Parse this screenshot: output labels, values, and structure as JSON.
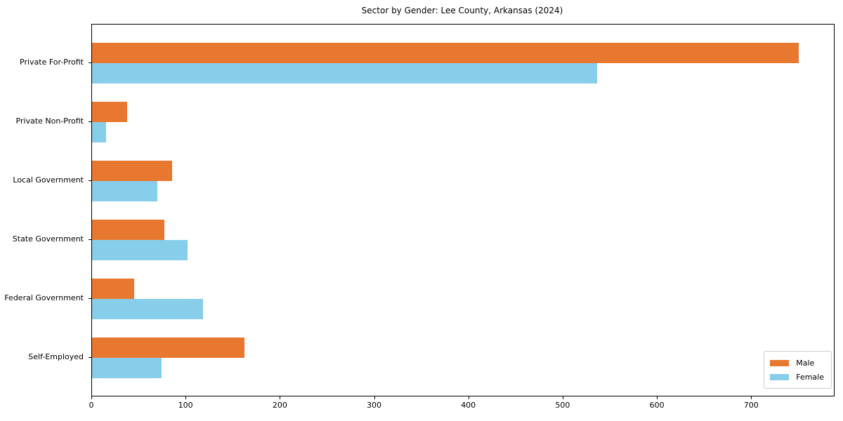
{
  "chart_data": {
    "type": "bar",
    "orientation": "horizontal",
    "title": "Sector by Gender: Lee County, Arkansas (2024)",
    "categories": [
      "Private For-Profit",
      "Private Non-Profit",
      "Local Government",
      "State Government",
      "Federal Government",
      "Self-Employed"
    ],
    "series": [
      {
        "name": "Male",
        "color": "#e8772f",
        "values": [
          750,
          37,
          85,
          77,
          45,
          162
        ]
      },
      {
        "name": "Female",
        "color": "#87ceeb",
        "values": [
          536,
          15,
          69,
          101,
          118,
          74
        ]
      }
    ],
    "xlabel": "",
    "ylabel": "",
    "xlim": [
      0,
      787
    ],
    "x_ticks": [
      0,
      100,
      200,
      300,
      400,
      500,
      600,
      700
    ],
    "grid": false,
    "legend": {
      "position": "lower right",
      "entries": [
        "Male",
        "Female"
      ]
    }
  }
}
